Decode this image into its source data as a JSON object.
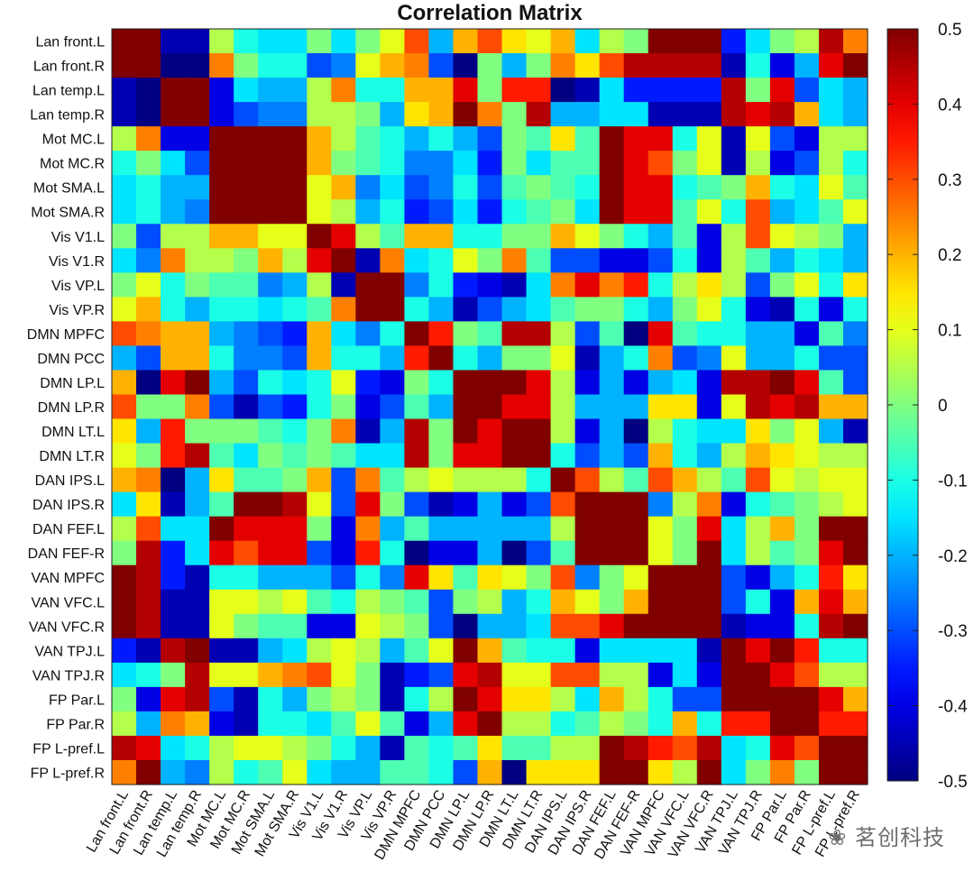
{
  "chart_data": {
    "type": "heatmap",
    "title": "Correlation Matrix",
    "labels": [
      "Lan front.L",
      "Lan front.R",
      "Lan temp.L",
      "Lan temp.R",
      "Mot MC.L",
      "Mot MC.R",
      "Mot SMA.L",
      "Mot SMA.R",
      "Vis V1.L",
      "Vis V1.R",
      "Vis VP.L",
      "Vis VP.R",
      "DMN MPFC",
      "DMN PCC",
      "DMN LP.L",
      "DMN LP.R",
      "DMN LT.L",
      "DMN LT.R",
      "DAN IPS.L",
      "DAN IPS.R",
      "DAN FEF.L",
      "DAN FEF-R",
      "VAN MPFC",
      "VAN VFC.L",
      "VAN VFC.R",
      "VAN TPJ.L",
      "VAN TPJ.R",
      "FP Par.L",
      "FP Par.R",
      "FP L-pref.L",
      "FP L-pref.R"
    ],
    "colorbar": {
      "range": [
        -0.5,
        0.5
      ],
      "ticks": [
        0.5,
        0.4,
        0.3,
        0.2,
        0.1,
        0,
        -0.1,
        -0.2,
        -0.3,
        -0.4,
        -0.5
      ],
      "tick_labels": [
        "0.5",
        "0.4",
        "0.3",
        "0.2",
        "0.1",
        "0",
        "-0.1",
        "-0.2",
        "-0.3",
        "-0.4",
        "-0.5"
      ],
      "colormap": "jet"
    },
    "values": [
      [
        0.5,
        0.5,
        -0.45,
        -0.45,
        0.05,
        -0.1,
        -0.15,
        -0.15,
        0.0,
        -0.15,
        0.0,
        0.1,
        0.3,
        -0.2,
        0.2,
        0.3,
        0.15,
        0.1,
        0.2,
        -0.15,
        0.05,
        0.0,
        0.5,
        0.5,
        0.5,
        -0.35,
        -0.15,
        0.0,
        0.05,
        0.45,
        0.25
      ],
      [
        0.5,
        0.5,
        -0.5,
        -0.5,
        0.25,
        0.0,
        -0.1,
        -0.1,
        -0.3,
        -0.25,
        0.1,
        0.2,
        0.25,
        -0.3,
        -0.5,
        0.0,
        -0.2,
        0.0,
        0.25,
        0.15,
        0.3,
        0.45,
        0.45,
        0.45,
        0.45,
        -0.45,
        -0.1,
        -0.4,
        -0.2,
        0.4,
        0.5
      ],
      [
        -0.45,
        -0.5,
        0.5,
        0.5,
        -0.4,
        -0.15,
        -0.2,
        -0.2,
        0.05,
        0.25,
        -0.1,
        -0.1,
        0.2,
        0.2,
        0.4,
        0.0,
        0.35,
        0.35,
        -0.5,
        -0.45,
        -0.15,
        -0.35,
        -0.35,
        -0.35,
        -0.35,
        0.45,
        0.0,
        0.4,
        -0.3,
        -0.15,
        -0.2
      ],
      [
        -0.45,
        -0.5,
        0.5,
        0.5,
        -0.4,
        -0.3,
        -0.25,
        -0.25,
        0.05,
        0.05,
        0.0,
        -0.2,
        0.15,
        0.2,
        0.5,
        0.25,
        0.0,
        0.45,
        -0.2,
        -0.2,
        -0.15,
        -0.15,
        -0.45,
        -0.45,
        -0.45,
        0.45,
        0.4,
        0.45,
        0.2,
        -0.15,
        -0.2
      ],
      [
        0.05,
        0.25,
        -0.4,
        -0.4,
        0.5,
        0.5,
        0.5,
        0.5,
        0.2,
        0.05,
        -0.05,
        -0.1,
        -0.2,
        -0.1,
        -0.2,
        -0.3,
        0.0,
        -0.05,
        0.15,
        -0.05,
        0.5,
        0.4,
        0.4,
        -0.1,
        0.1,
        -0.45,
        0.1,
        -0.3,
        -0.4,
        0.05,
        0.05
      ],
      [
        -0.1,
        0.0,
        -0.15,
        -0.3,
        0.5,
        0.5,
        0.5,
        0.5,
        0.2,
        0.0,
        -0.05,
        -0.1,
        -0.25,
        -0.25,
        -0.15,
        -0.35,
        0.0,
        -0.15,
        -0.05,
        -0.05,
        0.5,
        0.4,
        0.3,
        0.0,
        0.1,
        -0.45,
        0.05,
        -0.4,
        -0.3,
        0.05,
        -0.1
      ],
      [
        -0.15,
        -0.1,
        -0.2,
        -0.2,
        0.5,
        0.5,
        0.5,
        0.5,
        0.1,
        0.2,
        -0.25,
        -0.15,
        -0.3,
        -0.25,
        -0.1,
        -0.3,
        -0.05,
        0.0,
        -0.05,
        -0.1,
        0.5,
        0.4,
        0.4,
        -0.1,
        -0.05,
        0.0,
        0.2,
        -0.1,
        -0.15,
        0.1,
        -0.05
      ],
      [
        -0.15,
        -0.1,
        -0.2,
        -0.25,
        0.5,
        0.5,
        0.5,
        0.5,
        0.1,
        0.05,
        -0.2,
        -0.1,
        -0.35,
        -0.3,
        -0.15,
        -0.35,
        -0.1,
        -0.05,
        0.0,
        -0.15,
        0.5,
        0.4,
        0.4,
        -0.05,
        0.1,
        -0.1,
        0.3,
        -0.2,
        -0.15,
        -0.05,
        0.1
      ],
      [
        0.0,
        -0.3,
        0.05,
        0.05,
        0.2,
        0.2,
        0.1,
        0.1,
        0.5,
        0.4,
        0.05,
        -0.05,
        0.2,
        0.2,
        -0.1,
        -0.1,
        0.0,
        0.0,
        0.2,
        0.1,
        0.0,
        -0.1,
        -0.2,
        -0.05,
        -0.4,
        0.05,
        0.3,
        0.1,
        0.05,
        0.0,
        -0.2
      ],
      [
        -0.15,
        -0.25,
        0.25,
        0.05,
        0.05,
        0.0,
        0.2,
        0.05,
        0.4,
        0.5,
        -0.45,
        0.25,
        -0.15,
        -0.1,
        0.1,
        0.0,
        0.25,
        -0.05,
        -0.3,
        -0.3,
        -0.4,
        -0.4,
        -0.3,
        -0.1,
        -0.4,
        0.05,
        -0.05,
        -0.2,
        -0.1,
        -0.15,
        -0.2
      ],
      [
        0.0,
        0.1,
        -0.1,
        0.0,
        -0.05,
        -0.05,
        -0.25,
        -0.2,
        0.05,
        -0.45,
        0.5,
        0.5,
        -0.25,
        -0.1,
        -0.35,
        -0.4,
        -0.45,
        -0.15,
        0.25,
        0.4,
        0.25,
        0.35,
        -0.1,
        0.05,
        0.15,
        0.05,
        -0.3,
        0.0,
        0.1,
        -0.1,
        0.15
      ],
      [
        0.1,
        0.2,
        -0.1,
        -0.2,
        -0.1,
        -0.1,
        -0.15,
        -0.1,
        -0.05,
        0.25,
        0.5,
        0.5,
        -0.1,
        -0.2,
        -0.45,
        -0.3,
        -0.2,
        -0.15,
        -0.05,
        0.0,
        0.0,
        -0.1,
        -0.2,
        0.0,
        0.1,
        -0.1,
        -0.4,
        -0.45,
        -0.1,
        -0.4,
        -0.1
      ],
      [
        0.3,
        0.25,
        0.2,
        0.2,
        -0.2,
        -0.25,
        -0.3,
        -0.35,
        0.2,
        -0.15,
        -0.25,
        -0.1,
        0.5,
        0.35,
        0.0,
        -0.05,
        0.45,
        0.45,
        0.05,
        -0.3,
        -0.05,
        -0.5,
        0.4,
        -0.05,
        -0.1,
        -0.1,
        -0.2,
        -0.2,
        -0.4,
        -0.05,
        -0.25
      ],
      [
        -0.2,
        -0.3,
        0.2,
        0.2,
        -0.1,
        -0.25,
        -0.25,
        -0.3,
        0.2,
        -0.1,
        -0.1,
        -0.2,
        0.35,
        0.5,
        -0.1,
        -0.2,
        0.0,
        0.0,
        0.1,
        -0.45,
        -0.2,
        -0.1,
        0.25,
        -0.3,
        -0.25,
        0.1,
        -0.2,
        -0.2,
        -0.1,
        -0.3,
        -0.3
      ],
      [
        0.2,
        -0.5,
        0.4,
        0.5,
        -0.2,
        -0.3,
        -0.1,
        -0.15,
        -0.1,
        0.1,
        -0.35,
        -0.4,
        0.0,
        -0.1,
        0.5,
        0.5,
        0.5,
        0.4,
        0.05,
        -0.4,
        -0.2,
        -0.4,
        -0.2,
        -0.15,
        -0.4,
        0.45,
        0.45,
        0.5,
        0.4,
        -0.05,
        -0.3
      ],
      [
        0.3,
        0.0,
        0.0,
        0.25,
        -0.3,
        -0.45,
        -0.3,
        -0.35,
        -0.1,
        0.0,
        -0.4,
        -0.3,
        -0.05,
        -0.2,
        0.5,
        0.5,
        0.4,
        0.4,
        0.05,
        -0.2,
        -0.2,
        -0.2,
        0.15,
        0.15,
        -0.4,
        0.1,
        0.45,
        0.4,
        0.45,
        0.2,
        0.2
      ],
      [
        0.15,
        -0.2,
        0.35,
        0.0,
        0.0,
        0.0,
        -0.05,
        -0.1,
        0.0,
        0.25,
        -0.45,
        -0.2,
        0.45,
        0.0,
        0.5,
        0.4,
        0.5,
        0.5,
        0.05,
        -0.4,
        -0.2,
        -0.5,
        0.05,
        -0.1,
        -0.15,
        -0.15,
        0.15,
        0.0,
        0.1,
        -0.2,
        -0.45
      ],
      [
        0.1,
        0.0,
        0.35,
        0.45,
        -0.05,
        -0.15,
        0.0,
        -0.05,
        0.0,
        -0.05,
        -0.15,
        -0.15,
        0.45,
        0.0,
        0.4,
        0.4,
        0.5,
        0.5,
        -0.1,
        -0.3,
        -0.2,
        -0.3,
        0.2,
        -0.1,
        -0.2,
        0.05,
        0.2,
        0.15,
        0.1,
        0.05,
        0.05
      ],
      [
        0.2,
        0.25,
        -0.5,
        -0.2,
        0.15,
        -0.05,
        -0.05,
        0.0,
        0.2,
        -0.3,
        0.25,
        -0.05,
        0.05,
        0.1,
        0.05,
        0.05,
        0.05,
        -0.1,
        0.5,
        0.3,
        0.05,
        -0.05,
        0.3,
        0.2,
        0.05,
        -0.05,
        0.3,
        0.1,
        0.05,
        0.1,
        0.1
      ],
      [
        -0.15,
        0.15,
        -0.45,
        -0.2,
        -0.05,
        0.5,
        0.5,
        0.45,
        0.1,
        -0.3,
        0.4,
        0.0,
        -0.3,
        -0.45,
        -0.4,
        -0.2,
        -0.4,
        -0.3,
        0.3,
        0.5,
        0.5,
        0.5,
        -0.25,
        0.05,
        0.25,
        -0.4,
        -0.1,
        -0.05,
        0.0,
        0.05,
        0.1
      ],
      [
        0.05,
        0.3,
        -0.15,
        -0.15,
        0.5,
        0.4,
        0.4,
        0.4,
        0.0,
        -0.4,
        0.25,
        -0.2,
        -0.05,
        -0.2,
        -0.2,
        -0.2,
        -0.2,
        -0.2,
        0.05,
        0.5,
        0.5,
        0.5,
        0.1,
        0.0,
        0.4,
        -0.15,
        0.05,
        0.2,
        0.0,
        0.5,
        0.5
      ],
      [
        0.0,
        0.45,
        -0.35,
        -0.15,
        0.4,
        0.3,
        0.4,
        0.4,
        -0.3,
        -0.4,
        0.35,
        -0.1,
        -0.5,
        -0.4,
        -0.4,
        -0.2,
        -0.5,
        -0.3,
        -0.05,
        0.5,
        0.5,
        0.5,
        0.1,
        0.0,
        0.5,
        -0.15,
        0.05,
        -0.05,
        0.0,
        0.4,
        0.5
      ],
      [
        0.5,
        0.45,
        -0.35,
        -0.45,
        -0.1,
        -0.1,
        -0.2,
        -0.2,
        -0.2,
        -0.3,
        -0.1,
        -0.25,
        0.4,
        0.15,
        -0.05,
        0.15,
        0.1,
        0.0,
        0.3,
        -0.25,
        0.0,
        0.1,
        0.5,
        0.5,
        0.5,
        -0.3,
        -0.4,
        -0.2,
        -0.1,
        0.35,
        0.15
      ],
      [
        0.5,
        0.45,
        -0.45,
        -0.45,
        0.1,
        0.1,
        0.05,
        0.1,
        -0.05,
        -0.1,
        0.05,
        0.0,
        -0.05,
        -0.3,
        0.0,
        0.05,
        -0.2,
        -0.1,
        0.2,
        0.1,
        0.0,
        0.2,
        0.5,
        0.5,
        0.5,
        -0.3,
        -0.1,
        -0.4,
        0.2,
        0.4,
        0.2
      ],
      [
        0.5,
        0.45,
        -0.45,
        -0.45,
        0.1,
        0.0,
        -0.05,
        -0.05,
        -0.4,
        -0.4,
        0.1,
        0.05,
        0.0,
        -0.3,
        -0.5,
        -0.2,
        -0.2,
        -0.15,
        0.3,
        0.3,
        0.4,
        0.5,
        0.5,
        0.5,
        0.5,
        -0.45,
        -0.4,
        -0.4,
        -0.1,
        0.45,
        0.5
      ],
      [
        -0.35,
        -0.45,
        0.45,
        0.5,
        -0.45,
        -0.45,
        -0.2,
        -0.15,
        0.05,
        0.1,
        0.05,
        -0.2,
        -0.05,
        0.1,
        0.5,
        0.2,
        -0.05,
        -0.1,
        -0.1,
        -0.4,
        -0.15,
        -0.15,
        -0.15,
        -0.15,
        -0.45,
        0.5,
        0.4,
        0.5,
        0.35,
        -0.1,
        -0.1
      ],
      [
        -0.15,
        -0.1,
        0.0,
        0.45,
        0.1,
        0.1,
        0.2,
        0.25,
        0.3,
        0.1,
        0.0,
        -0.45,
        -0.35,
        -0.3,
        0.4,
        0.45,
        0.1,
        0.1,
        0.3,
        0.3,
        0.05,
        0.05,
        -0.4,
        -0.15,
        -0.4,
        0.5,
        0.5,
        0.4,
        0.3,
        0.05,
        0.05
      ],
      [
        0.0,
        -0.4,
        0.4,
        0.45,
        -0.3,
        -0.45,
        -0.1,
        -0.2,
        0.0,
        0.05,
        0.0,
        -0.45,
        -0.1,
        0.05,
        0.5,
        0.4,
        0.15,
        0.15,
        0.05,
        -0.15,
        0.2,
        0.05,
        -0.1,
        -0.3,
        -0.3,
        0.5,
        0.5,
        0.5,
        0.5,
        0.4,
        0.2
      ],
      [
        0.05,
        -0.2,
        0.25,
        0.2,
        -0.4,
        -0.45,
        -0.1,
        -0.1,
        -0.15,
        -0.05,
        0.1,
        -0.05,
        -0.4,
        -0.2,
        0.4,
        0.5,
        0.05,
        0.05,
        -0.1,
        -0.05,
        0.05,
        0.0,
        -0.1,
        0.2,
        -0.1,
        0.35,
        0.35,
        0.5,
        0.5,
        0.35,
        0.35
      ],
      [
        0.45,
        0.4,
        -0.15,
        -0.1,
        0.05,
        0.1,
        0.1,
        0.05,
        0.0,
        -0.1,
        -0.2,
        -0.45,
        -0.05,
        -0.1,
        -0.05,
        0.15,
        -0.05,
        -0.05,
        0.05,
        0.05,
        0.5,
        0.45,
        0.35,
        0.3,
        0.45,
        -0.15,
        -0.1,
        0.4,
        0.3,
        0.5,
        0.5
      ],
      [
        0.25,
        0.5,
        -0.2,
        -0.25,
        0.05,
        -0.1,
        -0.05,
        0.1,
        -0.15,
        -0.2,
        -0.2,
        -0.05,
        -0.05,
        -0.1,
        -0.3,
        0.2,
        -0.5,
        0.15,
        0.15,
        0.15,
        0.5,
        0.5,
        0.15,
        0.05,
        0.5,
        -0.15,
        0.0,
        0.25,
        0.0,
        0.5,
        0.5
      ]
    ]
  }
}
